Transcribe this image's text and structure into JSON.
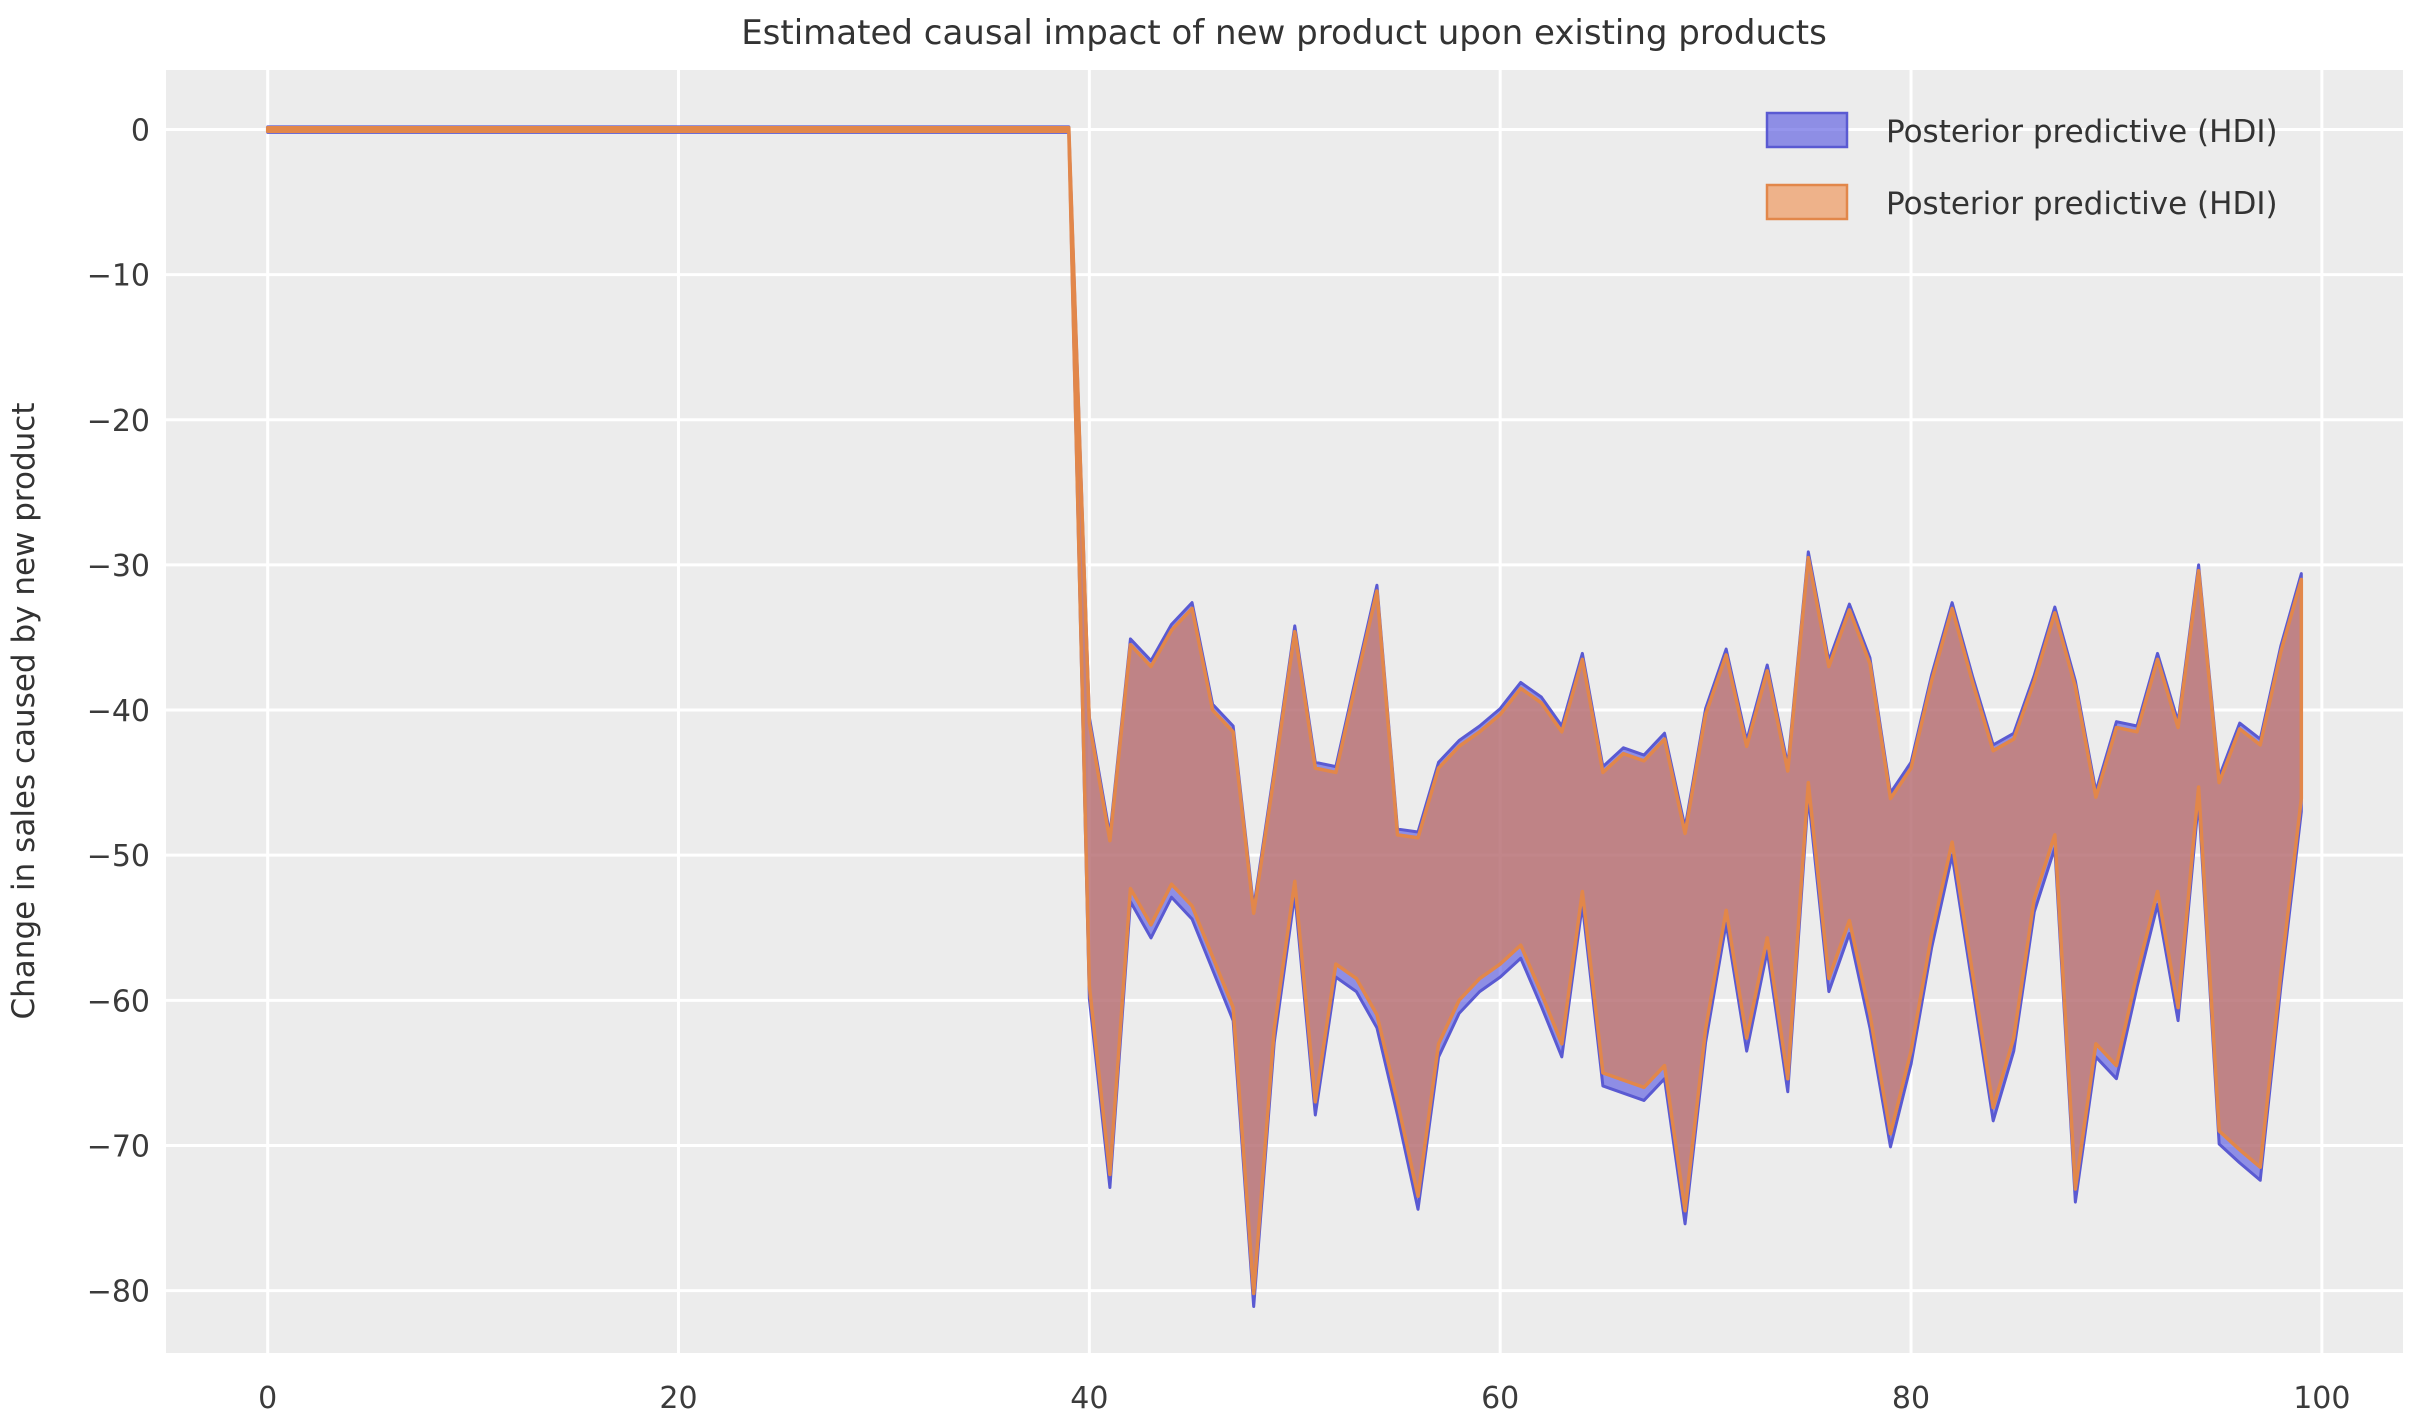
{
  "figure": {
    "background": "#ffffff",
    "plot_background": "#ececec",
    "grid_color": "#ffffff"
  },
  "chart_data": {
    "type": "area",
    "title": "Estimated causal impact of new product upon existing products",
    "xlabel": "",
    "ylabel": "Change in sales caused by new product",
    "grid": true,
    "legend_position": "upper right",
    "xlim": [
      -4.95,
      103.95
    ],
    "ylim": [
      -84.3,
      4.1
    ],
    "x_ticks": [
      0,
      20,
      40,
      60,
      80,
      100
    ],
    "x_tick_labels": [
      "0",
      "20",
      "40",
      "60",
      "80",
      "100"
    ],
    "y_ticks": [
      0,
      -10,
      -20,
      -30,
      -40,
      -50,
      -60,
      -70,
      -80
    ],
    "y_tick_labels": [
      "0",
      "−10",
      "−20",
      "−30",
      "−40",
      "−50",
      "−60",
      "−70",
      "−80"
    ],
    "x": [
      0,
      1,
      2,
      3,
      4,
      5,
      6,
      7,
      8,
      9,
      10,
      11,
      12,
      13,
      14,
      15,
      16,
      17,
      18,
      19,
      20,
      21,
      22,
      23,
      24,
      25,
      26,
      27,
      28,
      29,
      30,
      31,
      32,
      33,
      34,
      35,
      36,
      37,
      38,
      39,
      40,
      41,
      42,
      43,
      44,
      45,
      46,
      47,
      48,
      49,
      50,
      51,
      52,
      53,
      54,
      55,
      56,
      57,
      58,
      59,
      60,
      61,
      62,
      63,
      64,
      65,
      66,
      67,
      68,
      69,
      70,
      71,
      72,
      73,
      74,
      75,
      76,
      77,
      78,
      79,
      80,
      81,
      82,
      83,
      84,
      85,
      86,
      87,
      88,
      89,
      90,
      91,
      92,
      93,
      94,
      95,
      96,
      97,
      98,
      99
    ],
    "series": [
      {
        "name": "Posterior predictive (HDI)",
        "fill": "rgba(92,92,226,0.65)",
        "edge": "#5a5ad2",
        "lw": 3,
        "upper": [
          0.18,
          0.18,
          0.18,
          0.18,
          0.18,
          0.18,
          0.18,
          0.18,
          0.18,
          0.18,
          0.18,
          0.18,
          0.18,
          0.18,
          0.18,
          0.18,
          0.18,
          0.18,
          0.18,
          0.18,
          0.18,
          0.18,
          0.18,
          0.18,
          0.18,
          0.18,
          0.18,
          0.18,
          0.18,
          0.18,
          0.18,
          0.18,
          0.18,
          0.18,
          0.18,
          0.18,
          0.18,
          0.18,
          0.18,
          0.18,
          -40.5,
          -48.6,
          -35.1,
          -36.6,
          -34.1,
          -32.6,
          -39.6,
          -41.1,
          -53.6,
          -44.1,
          -34.2,
          -43.6,
          -43.9,
          -37.6,
          -31.4,
          -48.2,
          -48.4,
          -43.6,
          -42.1,
          -41.1,
          -39.9,
          -38.1,
          -39.1,
          -41.1,
          -36.1,
          -43.9,
          -42.6,
          -43.1,
          -41.6,
          -48.1,
          -39.9,
          -35.8,
          -42.1,
          -36.9,
          -43.8,
          -29.1,
          -36.6,
          -32.7,
          -36.4,
          -45.7,
          -43.6,
          -37.6,
          -32.6,
          -37.7,
          -42.4,
          -41.6,
          -37.6,
          -32.9,
          -38.0,
          -45.6,
          -40.8,
          -41.1,
          -36.1,
          -40.8,
          -30.0,
          -44.6,
          -40.9,
          -42.0,
          -35.6,
          -30.6
        ],
        "lower": [
          -0.2,
          -0.2,
          -0.2,
          -0.2,
          -0.2,
          -0.2,
          -0.2,
          -0.2,
          -0.2,
          -0.2,
          -0.2,
          -0.2,
          -0.2,
          -0.2,
          -0.2,
          -0.2,
          -0.2,
          -0.2,
          -0.2,
          -0.2,
          -0.2,
          -0.2,
          -0.2,
          -0.2,
          -0.2,
          -0.2,
          -0.2,
          -0.2,
          -0.2,
          -0.2,
          -0.2,
          -0.2,
          -0.2,
          -0.2,
          -0.2,
          -0.2,
          -0.2,
          -0.2,
          -0.2,
          -0.2,
          -59.9,
          -72.9,
          -53.2,
          -55.7,
          -52.9,
          -54.4,
          -57.9,
          -61.4,
          -81.1,
          -62.9,
          -52.7,
          -67.9,
          -58.4,
          -59.4,
          -61.9,
          -67.9,
          -74.4,
          -63.9,
          -60.9,
          -59.4,
          -58.4,
          -57.1,
          -60.4,
          -63.9,
          -53.4,
          -65.9,
          -66.4,
          -66.9,
          -65.4,
          -75.4,
          -62.9,
          -54.7,
          -63.5,
          -56.6,
          -66.3,
          -45.9,
          -59.4,
          -55.4,
          -61.9,
          -70.1,
          -64.4,
          -56.4,
          -50.0,
          -59.1,
          -68.3,
          -63.5,
          -53.9,
          -49.5,
          -73.9,
          -63.9,
          -65.4,
          -59.1,
          -53.4,
          -61.4,
          -46.2,
          -69.9,
          -71.2,
          -72.4,
          -59.1,
          -47.0
        ]
      },
      {
        "name": "Posterior predictive (HDI)",
        "fill": "rgba(240,120,40,0.5)",
        "edge": "#e2874a",
        "lw": 3.5,
        "upper": [
          0.12,
          0.12,
          0.12,
          0.12,
          0.12,
          0.12,
          0.12,
          0.12,
          0.12,
          0.12,
          0.12,
          0.12,
          0.12,
          0.12,
          0.12,
          0.12,
          0.12,
          0.12,
          0.12,
          0.12,
          0.12,
          0.12,
          0.12,
          0.12,
          0.12,
          0.12,
          0.12,
          0.12,
          0.12,
          0.12,
          0.12,
          0.12,
          0.12,
          0.12,
          0.12,
          0.12,
          0.12,
          0.12,
          0.12,
          0.12,
          -40.9,
          -49.0,
          -35.5,
          -37.0,
          -34.5,
          -33.0,
          -40.0,
          -41.5,
          -54.0,
          -44.5,
          -34.6,
          -44.0,
          -44.3,
          -38.0,
          -31.8,
          -48.6,
          -48.8,
          -44.0,
          -42.5,
          -41.5,
          -40.3,
          -38.5,
          -39.5,
          -41.5,
          -36.5,
          -44.3,
          -43.0,
          -43.5,
          -42.0,
          -48.5,
          -40.3,
          -36.2,
          -42.5,
          -37.3,
          -44.2,
          -29.5,
          -37.0,
          -33.1,
          -36.8,
          -46.1,
          -44.0,
          -38.0,
          -33.0,
          -38.1,
          -42.8,
          -42.0,
          -38.0,
          -33.3,
          -38.4,
          -46.0,
          -41.2,
          -41.5,
          -36.5,
          -41.2,
          -30.4,
          -45.0,
          -41.3,
          -42.4,
          -36.0,
          -31.0
        ],
        "lower": [
          -0.12,
          -0.12,
          -0.12,
          -0.12,
          -0.12,
          -0.12,
          -0.12,
          -0.12,
          -0.12,
          -0.12,
          -0.12,
          -0.12,
          -0.12,
          -0.12,
          -0.12,
          -0.12,
          -0.12,
          -0.12,
          -0.12,
          -0.12,
          -0.12,
          -0.12,
          -0.12,
          -0.12,
          -0.12,
          -0.12,
          -0.12,
          -0.12,
          -0.12,
          -0.12,
          -0.12,
          -0.12,
          -0.12,
          -0.12,
          -0.12,
          -0.12,
          -0.12,
          -0.12,
          -0.12,
          -0.12,
          -59.0,
          -72.0,
          -52.3,
          -54.8,
          -52.0,
          -53.5,
          -57.0,
          -60.5,
          -80.2,
          -62.0,
          -51.8,
          -67.0,
          -57.5,
          -58.5,
          -61.0,
          -67.0,
          -73.5,
          -63.0,
          -60.0,
          -58.5,
          -57.5,
          -56.2,
          -59.5,
          -63.0,
          -52.5,
          -65.0,
          -65.5,
          -66.0,
          -64.5,
          -74.5,
          -62.0,
          -53.8,
          -62.6,
          -55.7,
          -65.4,
          -45.0,
          -58.5,
          -54.5,
          -61.0,
          -69.2,
          -63.5,
          -55.5,
          -49.1,
          -58.2,
          -67.4,
          -62.6,
          -53.0,
          -48.6,
          -73.0,
          -63.0,
          -64.5,
          -58.2,
          -52.5,
          -60.5,
          -45.3,
          -69.0,
          -70.3,
          -71.5,
          -58.2,
          -46.1
        ]
      }
    ]
  }
}
